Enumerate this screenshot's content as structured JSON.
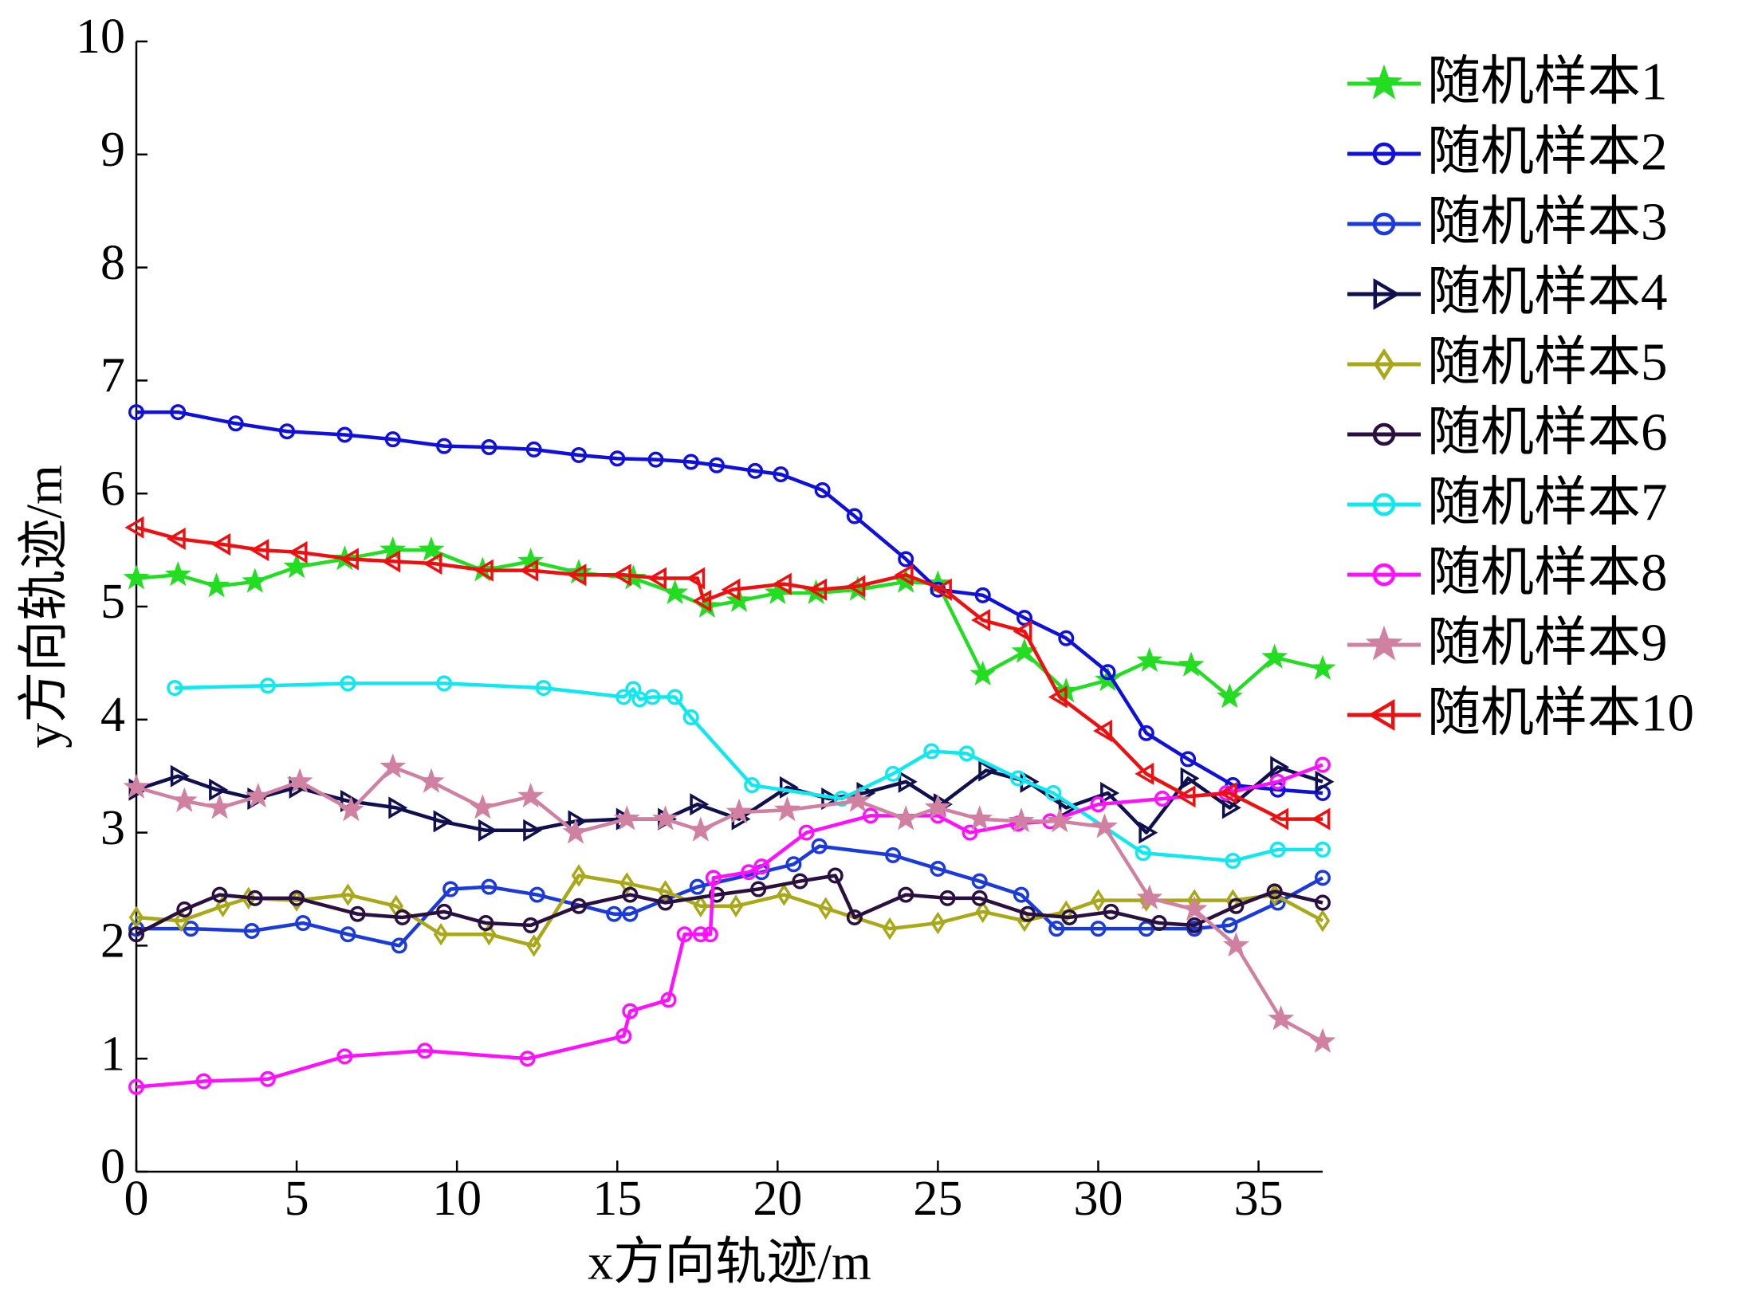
{
  "chart_data": {
    "type": "line",
    "xlabel": "x方向轨迹/m",
    "ylabel": "y方向轨迹/m",
    "xlim": [
      0,
      37
    ],
    "xticks": [
      0,
      5,
      10,
      15,
      20,
      25,
      30,
      35
    ],
    "ylim": [
      0,
      10
    ],
    "yticks": [
      0,
      1,
      2,
      3,
      4,
      5,
      6,
      7,
      8,
      9,
      10
    ],
    "series": [
      {
        "name": "随机样本1",
        "color": "#22dd22",
        "marker": "star",
        "x": [
          0,
          1.3,
          2.5,
          3.7,
          5,
          6.5,
          8,
          9.2,
          10.8,
          12.3,
          13.8,
          15.5,
          16.8,
          17.8,
          18.8,
          20,
          21.2,
          22.5,
          24,
          25,
          26.4,
          27.7,
          29,
          30.3,
          31.6,
          32.9,
          34.1,
          35.5,
          37
        ],
        "values": [
          5.25,
          5.28,
          5.18,
          5.22,
          5.35,
          5.42,
          5.5,
          5.5,
          5.32,
          5.4,
          5.3,
          5.25,
          5.12,
          5.0,
          5.05,
          5.12,
          5.12,
          5.15,
          5.22,
          5.2,
          4.4,
          4.6,
          4.25,
          4.35,
          4.52,
          4.48,
          4.2,
          4.55,
          4.45
        ]
      },
      {
        "name": "随机样本2",
        "color": "#1010dd",
        "marker": "circle",
        "x": [
          0,
          1.3,
          3.1,
          4.7,
          6.5,
          8,
          9.6,
          11,
          12.4,
          13.8,
          15,
          16.2,
          17.3,
          18.1,
          19.3,
          20.1,
          21.4,
          22.4,
          24,
          25,
          26.4,
          27.7,
          29,
          30.3,
          31.5,
          32.8,
          34.2,
          35.6,
          37
        ],
        "values": [
          6.72,
          6.72,
          6.62,
          6.55,
          6.52,
          6.48,
          6.42,
          6.41,
          6.39,
          6.34,
          6.31,
          6.3,
          6.28,
          6.25,
          6.2,
          6.17,
          6.03,
          5.8,
          5.42,
          5.15,
          5.1,
          4.9,
          4.72,
          4.42,
          3.88,
          3.65,
          3.42,
          3.38,
          3.35
        ]
      },
      {
        "name": "随机样本3",
        "color": "#1a3adc",
        "marker": "circle",
        "x": [
          0,
          1.7,
          3.6,
          5.2,
          6.6,
          8.2,
          9.8,
          11,
          12.5,
          14.9,
          15.4,
          17.5,
          19.5,
          20.5,
          21.3,
          23.6,
          25,
          26.3,
          27.6,
          28.7,
          30,
          31.5,
          33,
          34.1,
          35.6,
          37
        ],
        "values": [
          2.15,
          2.15,
          2.13,
          2.2,
          2.1,
          2.0,
          2.5,
          2.52,
          2.45,
          2.28,
          2.28,
          2.52,
          2.65,
          2.72,
          2.88,
          2.8,
          2.68,
          2.57,
          2.45,
          2.15,
          2.15,
          2.15,
          2.15,
          2.18,
          2.38,
          2.6
        ]
      },
      {
        "name": "随机样本4",
        "color": "#101050",
        "marker": "tri-right",
        "x": [
          0,
          1.3,
          2.5,
          3.7,
          5,
          6.6,
          8.1,
          9.5,
          10.9,
          12.3,
          13.7,
          15.2,
          16.5,
          17.5,
          18.8,
          20.3,
          21.6,
          22.7,
          24,
          25.1,
          26.5,
          27.8,
          29,
          30.3,
          31.5,
          32.8,
          34.1,
          35.6,
          37
        ],
        "values": [
          3.38,
          3.5,
          3.38,
          3.3,
          3.4,
          3.28,
          3.22,
          3.1,
          3.02,
          3.02,
          3.1,
          3.12,
          3.12,
          3.25,
          3.12,
          3.4,
          3.3,
          3.35,
          3.45,
          3.25,
          3.55,
          3.45,
          3.22,
          3.35,
          3.0,
          3.48,
          3.22,
          3.58,
          3.45
        ]
      },
      {
        "name": "随机样本5",
        "color": "#a8a818",
        "marker": "diamond",
        "x": [
          0,
          1.4,
          2.7,
          3.5,
          5,
          6.6,
          8.1,
          9.5,
          11,
          12.4,
          13.8,
          15.3,
          16.5,
          17.6,
          18.7,
          20.2,
          21.5,
          23.5,
          25,
          26.4,
          27.7,
          29,
          30,
          31.5,
          33,
          34.2,
          35.5,
          37
        ],
        "values": [
          2.25,
          2.22,
          2.35,
          2.42,
          2.4,
          2.45,
          2.35,
          2.1,
          2.1,
          2.0,
          2.62,
          2.55,
          2.48,
          2.35,
          2.35,
          2.45,
          2.33,
          2.15,
          2.2,
          2.3,
          2.22,
          2.3,
          2.4,
          2.4,
          2.4,
          2.4,
          2.45,
          2.22
        ]
      },
      {
        "name": "随机样本6",
        "color": "#2a1040",
        "marker": "circle",
        "x": [
          0,
          1.5,
          2.6,
          3.7,
          5,
          6.9,
          8.3,
          9.6,
          10.9,
          12.3,
          13.8,
          15.4,
          16.5,
          18.1,
          19.4,
          20.7,
          21.8,
          22.4,
          24,
          25.3,
          26.3,
          27.8,
          29.1,
          30.4,
          31.9,
          33,
          34.3,
          35.5,
          37
        ],
        "values": [
          2.1,
          2.32,
          2.45,
          2.42,
          2.42,
          2.28,
          2.25,
          2.3,
          2.2,
          2.18,
          2.35,
          2.45,
          2.38,
          2.45,
          2.5,
          2.57,
          2.62,
          2.25,
          2.45,
          2.42,
          2.42,
          2.28,
          2.25,
          2.3,
          2.2,
          2.18,
          2.35,
          2.48,
          2.38
        ]
      },
      {
        "name": "随机样本7",
        "color": "#10e8f0",
        "marker": "circle",
        "x": [
          1.2,
          4.1,
          6.6,
          9.6,
          12.7,
          15.2,
          15.5,
          15.7,
          16.1,
          16.8,
          17.3,
          19.2,
          22,
          23.6,
          24.8,
          25.9,
          27.5,
          28.6,
          31.4,
          34.2,
          35.6,
          37
        ],
        "values": [
          4.28,
          4.3,
          4.32,
          4.32,
          4.28,
          4.2,
          4.27,
          4.18,
          4.2,
          4.2,
          4.02,
          3.42,
          3.3,
          3.52,
          3.72,
          3.7,
          3.48,
          3.35,
          2.82,
          2.75,
          2.85,
          2.85
        ]
      },
      {
        "name": "随机样本8",
        "color": "#ff10ff",
        "marker": "circle",
        "x": [
          0,
          2.1,
          4.1,
          6.5,
          9,
          12.2,
          15.2,
          15.4,
          16.6,
          17.1,
          17.6,
          17.9,
          18,
          19.1,
          19.5,
          20.9,
          22.9,
          25,
          26,
          27.5,
          28.5,
          30,
          32,
          34,
          35.6,
          37
        ],
        "values": [
          0.75,
          0.8,
          0.82,
          1.02,
          1.07,
          1.0,
          1.2,
          1.42,
          1.52,
          2.1,
          2.1,
          2.1,
          2.6,
          2.65,
          2.7,
          3.0,
          3.15,
          3.15,
          3.0,
          3.08,
          3.1,
          3.25,
          3.3,
          3.35,
          3.45,
          3.6
        ]
      },
      {
        "name": "随机样本9",
        "color": "#d080a0",
        "marker": "star",
        "x": [
          0,
          1.5,
          2.6,
          3.8,
          5.1,
          6.7,
          8,
          9.2,
          10.8,
          12.3,
          13.7,
          15.3,
          16.5,
          17.6,
          18.8,
          20.3,
          22.5,
          24,
          25,
          26.3,
          27.6,
          28.8,
          30.2,
          31.6,
          33,
          34.3,
          35.7,
          37
        ],
        "values": [
          3.4,
          3.28,
          3.22,
          3.32,
          3.45,
          3.2,
          3.58,
          3.45,
          3.22,
          3.32,
          3.0,
          3.12,
          3.12,
          3.02,
          3.18,
          3.2,
          3.28,
          3.12,
          3.22,
          3.12,
          3.1,
          3.1,
          3.05,
          2.42,
          2.32,
          2.0,
          1.35,
          1.15
        ]
      },
      {
        "name": "随机样本10",
        "color": "#ee1010",
        "marker": "tri-left",
        "x": [
          0,
          1.3,
          2.7,
          3.9,
          5.1,
          6.7,
          8,
          9.3,
          10.9,
          12.3,
          13.8,
          15.2,
          16.3,
          17.5,
          17.7,
          18.6,
          20.2,
          21.3,
          22.5,
          24,
          25.2,
          26.4,
          27.7,
          28.8,
          30.2,
          31.5,
          32.8,
          34.1,
          35.7,
          37
        ],
        "values": [
          5.7,
          5.6,
          5.55,
          5.5,
          5.48,
          5.42,
          5.4,
          5.38,
          5.32,
          5.32,
          5.28,
          5.28,
          5.25,
          5.25,
          5.05,
          5.15,
          5.2,
          5.15,
          5.18,
          5.28,
          5.15,
          4.88,
          4.78,
          4.2,
          3.9,
          3.52,
          3.32,
          3.35,
          3.12,
          3.12
        ]
      }
    ]
  }
}
